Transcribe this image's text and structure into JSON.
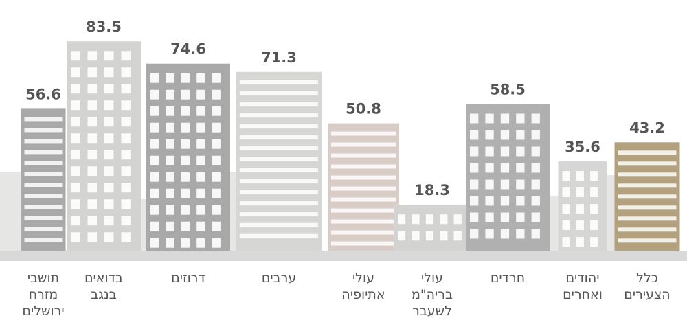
{
  "chart_data": {
    "type": "bar",
    "categories": [
      "תושבי מזרח ירושלים",
      "בדואים בנגב",
      "דרוזים",
      "ערבים",
      "עולי אתיופיה",
      "עולי בריה\"מ לשעבר",
      "חרדים",
      "יהודים ואחרים",
      "כלל הצעירים"
    ],
    "values": [
      56.6,
      83.5,
      74.6,
      71.3,
      50.8,
      18.3,
      58.5,
      35.6,
      43.2
    ],
    "colors": [
      "#a9a9a9",
      "#d3d3d1",
      "#a9a9a9",
      "#d6d6d4",
      "#d9cbc6",
      "#d3d3d1",
      "#b0b0b0",
      "#d6d6d4",
      "#b2a17c"
    ],
    "ylim": [
      0,
      100
    ]
  }
}
